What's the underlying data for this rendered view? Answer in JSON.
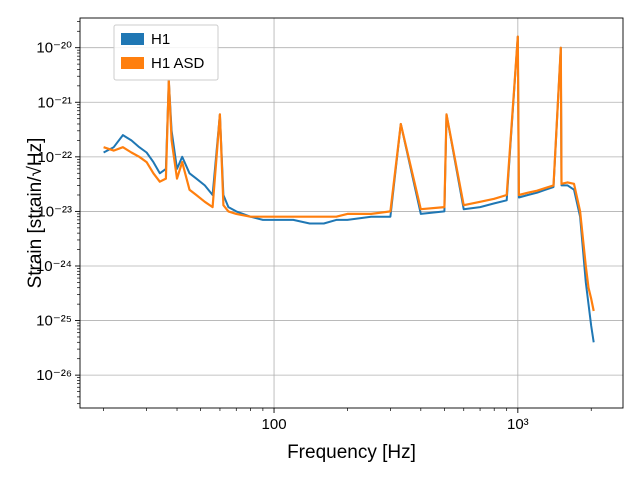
{
  "chart_data": {
    "type": "line",
    "xscale": "log",
    "yscale": "log",
    "xlim": [
      16,
      2700
    ],
    "ylim": [
      2.5e-27,
      3.5e-20
    ],
    "grid": true,
    "legend_placement": "top-left",
    "xlabel": "Frequency [Hz]",
    "ylabel": "Strain [strain/√Hz]",
    "xticks": [
      {
        "value": 100,
        "label": "100"
      },
      {
        "value": 1000,
        "label": "10³"
      }
    ],
    "yticks": [
      {
        "value": 1e-20,
        "label": "10⁻²⁰"
      },
      {
        "value": 1e-21,
        "label": "10⁻²¹"
      },
      {
        "value": 1e-22,
        "label": "10⁻²²"
      },
      {
        "value": 1e-23,
        "label": "10⁻²³"
      },
      {
        "value": 1e-24,
        "label": "10⁻²⁴"
      },
      {
        "value": 1e-25,
        "label": "10⁻²⁵"
      },
      {
        "value": 1e-26,
        "label": "10⁻²⁶"
      }
    ],
    "series": [
      {
        "name": "H1",
        "color": "#1f77b4",
        "x": [
          20,
          22,
          24,
          26,
          28,
          30,
          32,
          34,
          36,
          37,
          38,
          40,
          42,
          45,
          48,
          52,
          56,
          60,
          62,
          65,
          70,
          80,
          90,
          100,
          110,
          120,
          140,
          160,
          180,
          200,
          250,
          300,
          331,
          400,
          500,
          510,
          600,
          700,
          800,
          900,
          1000,
          1010,
          1100,
          1200,
          1300,
          1400,
          1500,
          1510,
          1600,
          1700,
          1800,
          1900,
          1950,
          2000,
          2048
        ],
        "y": [
          1.2e-22,
          1.5e-22,
          2.5e-22,
          2e-22,
          1.5e-22,
          1.2e-22,
          8e-23,
          5e-23,
          6e-23,
          2.5e-21,
          3e-22,
          6e-23,
          1e-22,
          5e-23,
          4e-23,
          3e-23,
          2e-23,
          6e-22,
          2e-23,
          1.2e-23,
          1e-23,
          8e-24,
          7e-24,
          7e-24,
          7e-24,
          7e-24,
          6e-24,
          6e-24,
          7e-24,
          7e-24,
          8e-24,
          8e-24,
          4e-22,
          9e-24,
          1e-23,
          6e-22,
          1.1e-23,
          1.2e-23,
          1.4e-23,
          1.6e-23,
          1.6e-20,
          1.8e-23,
          2e-23,
          2.2e-23,
          2.5e-23,
          2.8e-23,
          1e-20,
          3e-23,
          3e-23,
          2.5e-23,
          8e-24,
          5e-25,
          2e-25,
          8e-26,
          4e-26
        ]
      },
      {
        "name": "H1 ASD",
        "color": "#ff7f0e",
        "x": [
          20,
          22,
          24,
          26,
          28,
          30,
          32,
          34,
          36,
          37,
          38,
          40,
          42,
          45,
          48,
          52,
          56,
          60,
          62,
          65,
          70,
          80,
          90,
          100,
          110,
          120,
          140,
          160,
          180,
          200,
          250,
          300,
          331,
          400,
          500,
          510,
          600,
          700,
          800,
          900,
          1000,
          1010,
          1100,
          1200,
          1300,
          1400,
          1500,
          1510,
          1600,
          1700,
          1800,
          1900,
          1950,
          2000,
          2048
        ],
        "y": [
          1.5e-22,
          1.3e-22,
          1.5e-22,
          1.2e-22,
          1e-22,
          8e-23,
          5e-23,
          3.5e-23,
          4e-23,
          2.5e-21,
          2e-22,
          4e-23,
          8e-23,
          2.5e-23,
          2e-23,
          1.5e-23,
          1.2e-23,
          6e-22,
          1.3e-23,
          1e-23,
          9e-24,
          8e-24,
          8e-24,
          8e-24,
          8e-24,
          8e-24,
          8e-24,
          8e-24,
          8e-24,
          9e-24,
          9e-24,
          1e-23,
          4e-22,
          1.1e-23,
          1.2e-23,
          6e-22,
          1.3e-23,
          1.5e-23,
          1.7e-23,
          2e-23,
          1.6e-20,
          2e-23,
          2.2e-23,
          2.4e-23,
          2.7e-23,
          3e-23,
          1e-20,
          3.2e-23,
          3.4e-23,
          3.2e-23,
          1e-23,
          1e-24,
          4e-25,
          2.5e-25,
          1.5e-25
        ]
      }
    ]
  }
}
